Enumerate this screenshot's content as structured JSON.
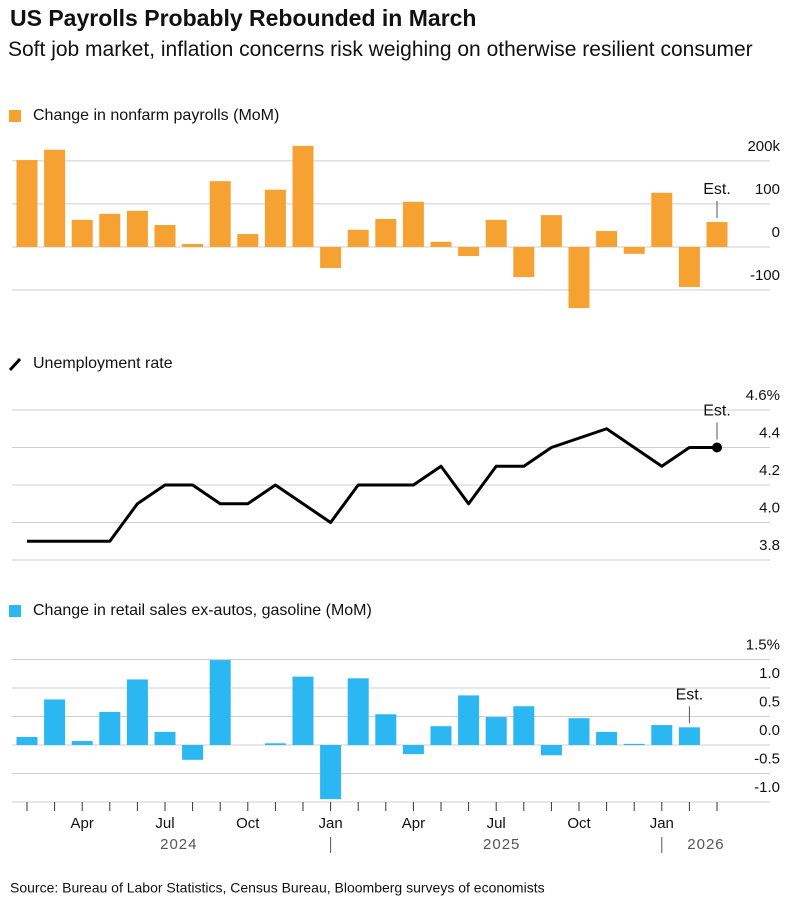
{
  "title": "US Payrolls Probably Rebounded in March",
  "subtitle": "Soft job market, inflation concerns risk weighing on otherwise resilient consumer",
  "source": "Source: Bureau of Labor Statistics, Census Bureau, Bloomberg surveys of economists",
  "chart_data": [
    {
      "type": "bar",
      "annotation": "Est.",
      "series": [
        {
          "name": "Change in nonfarm payrolls (MoM)",
          "color": "#f6a233",
          "values": [
            202,
            226,
            63,
            77,
            84,
            51,
            7,
            153,
            30,
            133,
            235,
            -49,
            40,
            65,
            105,
            12,
            -21,
            63,
            -70,
            74,
            -142,
            37,
            -16,
            126,
            -93,
            58
          ]
        }
      ],
      "ylim": [
        -150,
        230
      ],
      "yticks": [
        {
          "value": 200,
          "label": "200k"
        },
        100,
        0,
        -100
      ],
      "grid": true
    },
    {
      "type": "line",
      "annotation": "Est.",
      "series": [
        {
          "name": "Unemployment rate",
          "color": "#000000",
          "values": [
            3.9,
            3.9,
            3.9,
            3.9,
            4.1,
            4.2,
            4.2,
            4.1,
            4.1,
            4.2,
            4.1,
            4.0,
            4.2,
            4.2,
            4.2,
            4.3,
            4.1,
            4.3,
            4.3,
            4.4,
            4.45,
            4.5,
            4.4,
            4.3,
            4.4,
            4.4
          ]
        }
      ],
      "ylim": [
        3.8,
        4.6
      ],
      "yticks": [
        {
          "value": 4.6,
          "label": "4.6%"
        },
        4.4,
        4.2,
        {
          "value": 4,
          "label": "4.0"
        },
        3.8
      ],
      "grid": true
    },
    {
      "type": "bar",
      "annotation": "Est.",
      "series": [
        {
          "name": "Change in retail sales ex-autos, gasoline (MoM)",
          "color": "#2bb7f1",
          "values": [
            0.14,
            0.8,
            0.07,
            0.58,
            1.15,
            0.23,
            -0.26,
            1.49,
            0,
            0.03,
            1.2,
            -0.95,
            1.17,
            0.54,
            -0.16,
            0.33,
            0.87,
            0.49,
            0.68,
            -0.18,
            0.47,
            0.23,
            0.02,
            0.35,
            0.31,
            null
          ]
        }
      ],
      "ylim": [
        -1.0,
        1.5
      ],
      "yticks": [
        {
          "value": 1.5,
          "label": "1.5%"
        },
        {
          "value": 1,
          "label": "1.0"
        },
        0.5,
        {
          "value": 0,
          "label": "0.0"
        },
        -0.5,
        {
          "value": -1,
          "label": "-1.0"
        }
      ],
      "grid": true,
      "categories": [
        null,
        null,
        "Apr",
        null,
        null,
        "Jul",
        null,
        null,
        "Oct",
        null,
        null,
        "Jan",
        null,
        null,
        "Apr",
        null,
        null,
        "Jul",
        null,
        null,
        "Oct",
        null,
        null,
        "Jan",
        null,
        null
      ],
      "year_labels": [
        "2024",
        "2025",
        "2026"
      ]
    }
  ]
}
